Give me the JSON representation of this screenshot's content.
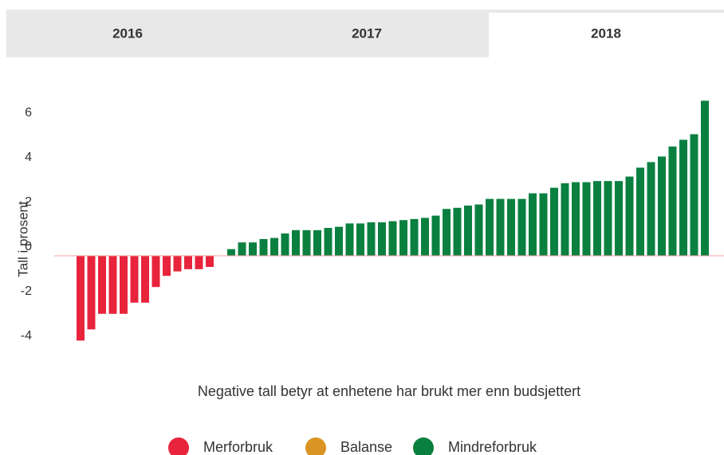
{
  "tabs": {
    "items": [
      "2016",
      "2017",
      "2018"
    ],
    "active": 2
  },
  "chart_data": {
    "type": "bar",
    "y_label": "Tall i prosent",
    "note": "Negative tall betyr at enhetene har brukt mer enn budsjettert",
    "categories": [
      null,
      null,
      null,
      null,
      null,
      null,
      null,
      null,
      null,
      null,
      null,
      null,
      null,
      null,
      null,
      null,
      null,
      null,
      null,
      null,
      null,
      null,
      null,
      null,
      null,
      null,
      null,
      null,
      null,
      null,
      null,
      null,
      null,
      null,
      null,
      null,
      null,
      null,
      null,
      null,
      null,
      null,
      null,
      null,
      null,
      null,
      null,
      null,
      null,
      null,
      null,
      null,
      null,
      null,
      null,
      null,
      null,
      null,
      null
    ],
    "series": [
      {
        "name": "Merforbruk",
        "color": "#e8243c",
        "values": [
          -3.8,
          -3.3,
          -2.6,
          -2.6,
          -2.6,
          -2.1,
          -2.1,
          -1.4,
          -0.9,
          -0.7,
          -0.6,
          -0.6,
          -0.5,
          null,
          null,
          null,
          null,
          null,
          null,
          null,
          null,
          null,
          null,
          null,
          null,
          null,
          null,
          null,
          null,
          null,
          null,
          null,
          null,
          null,
          null,
          null,
          null,
          null,
          null,
          null,
          null,
          null,
          null,
          null,
          null,
          null,
          null,
          null,
          null,
          null,
          null,
          null,
          null,
          null,
          null,
          null,
          null,
          null,
          null
        ]
      },
      {
        "name": "Balanse",
        "color": "#d99423",
        "values": [
          null,
          null,
          null,
          null,
          null,
          null,
          null,
          null,
          null,
          null,
          null,
          null,
          null,
          0,
          null,
          null,
          null,
          null,
          null,
          null,
          null,
          null,
          null,
          null,
          null,
          null,
          null,
          null,
          null,
          null,
          null,
          null,
          null,
          null,
          null,
          null,
          null,
          null,
          null,
          null,
          null,
          null,
          null,
          null,
          null,
          null,
          null,
          null,
          null,
          null,
          null,
          null,
          null,
          null,
          null,
          null,
          null,
          null,
          null
        ]
      },
      {
        "name": "Mindreforbruk",
        "color": "#0a8040",
        "values": [
          null,
          null,
          null,
          null,
          null,
          null,
          null,
          null,
          null,
          null,
          null,
          null,
          null,
          null,
          0.3,
          0.6,
          0.6,
          0.75,
          0.8,
          1.0,
          1.15,
          1.15,
          1.15,
          1.25,
          1.3,
          1.45,
          1.45,
          1.5,
          1.5,
          1.55,
          1.6,
          1.65,
          1.7,
          1.8,
          2.1,
          2.15,
          2.25,
          2.3,
          2.55,
          2.55,
          2.55,
          2.55,
          2.8,
          2.8,
          3.05,
          3.25,
          3.3,
          3.3,
          3.35,
          3.35,
          3.35,
          3.55,
          3.95,
          4.2,
          4.45,
          4.9,
          5.2,
          5.45,
          6.95
        ]
      }
    ],
    "ylim": [
      -4.5,
      7.5
    ],
    "yticks": [
      -4,
      -2,
      0,
      2,
      4,
      6
    ],
    "grid": false,
    "baseline_color": "#f0a0a0"
  }
}
